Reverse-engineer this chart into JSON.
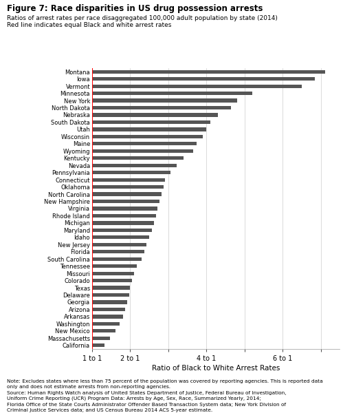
{
  "title": "Figure 7: Race disparities in US drug possession arrests",
  "subtitle1": "Ratios of arrest rates per race disaggregated 100,000 adult population by state (2014)",
  "subtitle2": "Red line indicates equal Black and white arrest rates",
  "xlabel": "Ratio of Black to White Arrest Rates",
  "note": "Note: Excludes states where less than 75 percent of the population was covered by reporting agencies. This is reported data\nonly and does not estimate arrests from non-reporting agencies.\nSource: Human Rights Watch analysis of United States Department of Justice, Federal Bureau of Investigation,\nUniform Crime Reporting (UCR) Program Data: Arrests by Age, Sex, Race, Summarized Yearly, 2014;\nFlorida Office of the State Courts Administrator Offender Based Transaction System data; New York Division of\nCriminal Justice Services data; and US Census Bureau 2014 ACS 5-year estimate.",
  "states": [
    "Montana",
    "Iowa",
    "Vermont",
    "Minnesota",
    "New York",
    "North Dakota",
    "Nebraska",
    "South Dakota",
    "Utah",
    "Wisconsin",
    "Maine",
    "Wyoming",
    "Kentucky",
    "Nevada",
    "Pennsylvania",
    "Connecticut",
    "Oklahoma",
    "North Carolina",
    "New Hampshire",
    "Virginia",
    "Rhode Island",
    "Michigan",
    "Maryland",
    "Idaho",
    "New Jersey",
    "Florida",
    "South Carolina",
    "Tennessee",
    "Missouri",
    "Colorado",
    "Texas",
    "Delaware",
    "Georgia",
    "Arizona",
    "Arkansas",
    "Washington",
    "New Mexico",
    "Massachusetts",
    "California"
  ],
  "values": [
    7.12,
    6.85,
    6.5,
    5.2,
    4.8,
    4.65,
    4.3,
    4.1,
    4.0,
    3.9,
    3.75,
    3.65,
    3.4,
    3.22,
    3.05,
    2.92,
    2.87,
    2.82,
    2.77,
    2.72,
    2.67,
    2.62,
    2.57,
    2.5,
    2.43,
    2.37,
    2.3,
    2.17,
    2.1,
    2.05,
    2.0,
    1.97,
    1.92,
    1.87,
    1.82,
    1.72,
    1.62,
    1.47,
    1.32
  ],
  "bar_color": "#555555",
  "red_line_x": 1.0,
  "xlim_min": 1,
  "xlim_max": 7.5,
  "xticks": [
    1,
    2,
    3,
    4,
    5,
    6,
    7
  ],
  "xticklabels": [
    "1 to 1",
    "2 to 1",
    "",
    "4 to 1",
    "",
    "6 to 1",
    ""
  ],
  "fig_width": 5.15,
  "fig_height": 6.0,
  "dpi": 100
}
